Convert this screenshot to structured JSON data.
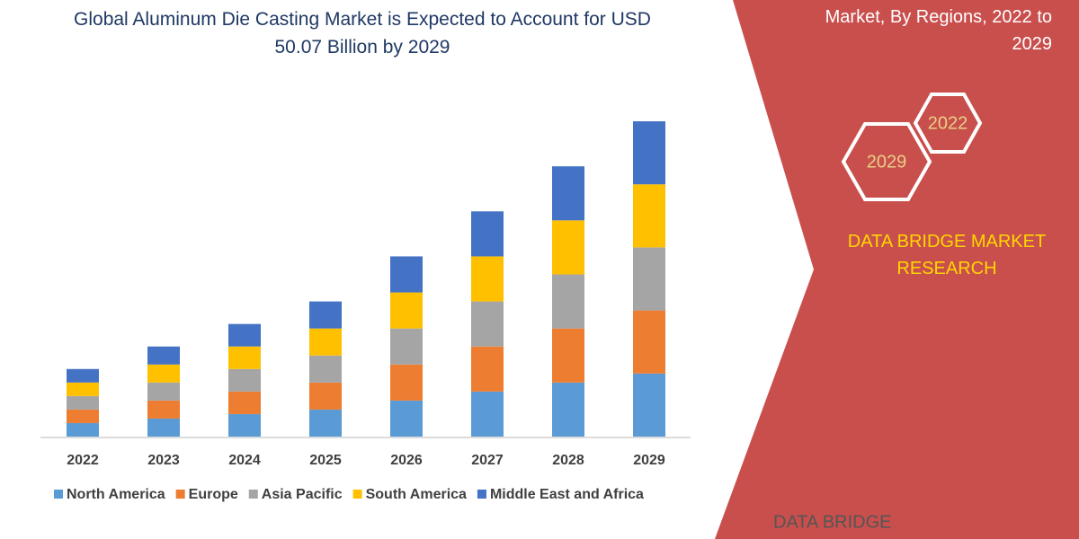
{
  "chart_data": {
    "type": "stacked-bar",
    "title": "Global Aluminum Die Casting Market is Expected to Account for USD 50.07 Billion by 2029",
    "categories": [
      "2022",
      "2023",
      "2024",
      "2025",
      "2026",
      "2027",
      "2028",
      "2029"
    ],
    "series": [
      {
        "name": "North America",
        "color": "#5b9bd5",
        "values": [
          15,
          20,
          25,
          30,
          40,
          50,
          60,
          70
        ]
      },
      {
        "name": "Europe",
        "color": "#ed7d31",
        "values": [
          15,
          20,
          25,
          30,
          40,
          50,
          60,
          70
        ]
      },
      {
        "name": "Asia Pacific",
        "color": "#a5a5a5",
        "values": [
          15,
          20,
          25,
          30,
          40,
          50,
          60,
          70
        ]
      },
      {
        "name": "South America",
        "color": "#ffc000",
        "values": [
          15,
          20,
          25,
          30,
          40,
          50,
          60,
          70
        ]
      },
      {
        "name": "Middle East and Africa",
        "color": "#4472c4",
        "values": [
          15,
          20,
          25,
          30,
          40,
          50,
          60,
          70
        ]
      }
    ],
    "legend": "bottom"
  },
  "panel": {
    "heading": "Market, By Regions, 2022 to 2029",
    "hexagons": [
      "2022",
      "2029"
    ],
    "brand": "DATA BRIDGE MARKET RESEARCH",
    "logo": "DATA BRIDGE"
  }
}
